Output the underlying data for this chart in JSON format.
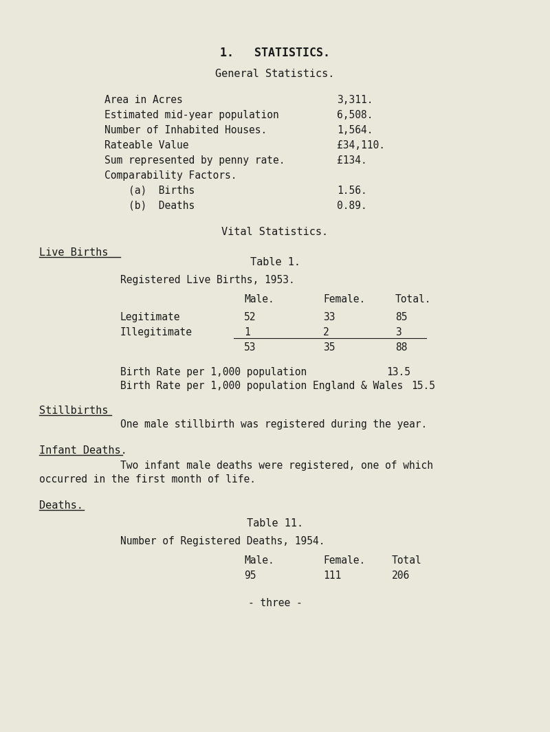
{
  "bg_color": "#eae8da",
  "text_color": "#1a1a1a",
  "title_main": "1.   STATISTICS.",
  "title_sub": "General Statistics.",
  "general_stats_labels": [
    "Area in Acres",
    "Estimated mid-year population",
    "Number of Inhabited Houses.",
    "Rateable Value",
    "Sum represented by penny rate.",
    "Comparability Factors.",
    "    (a)  Births",
    "    (b)  Deaths"
  ],
  "general_stats_values": [
    "3,311.",
    "6,508.",
    "1,564.",
    "£34,110.",
    "£134.",
    "",
    "1.56.",
    "0.89."
  ],
  "vital_stats_title": "Vital Statistics.",
  "live_births_heading": "Live Births",
  "table1_title": "Table 1.",
  "table1_subtitle": "Registered Live Births, 1953.",
  "table1_col_headers": [
    "Male.",
    "Female.",
    "Total."
  ],
  "table1_rows": [
    [
      "Legitimate",
      "52",
      "33",
      "85"
    ],
    [
      "Illegitimate",
      "1",
      "2",
      "3"
    ],
    [
      "",
      "53",
      "35",
      "88"
    ]
  ],
  "birth_rate_1": "Birth Rate per 1,000 population",
  "birth_rate_1_val": "13.5",
  "birth_rate_2": "Birth Rate per 1,000 population England & Wales",
  "birth_rate_2_val": "15.5",
  "stillbirths_heading": "Stillbirths",
  "stillbirths_text": "One male stillbirth was registered during the year.",
  "infant_deaths_heading": "Infant Deaths.",
  "infant_deaths_text1": "Two infant male deaths were registered, one of which",
  "infant_deaths_text2": "occurred in the first month of life.",
  "deaths_heading": "Deaths.",
  "table2_title": "Table 11.",
  "table2_subtitle": "Number of Registered Deaths, 1954.",
  "table2_col_headers": [
    "Male.",
    "Female.",
    "Total"
  ],
  "table2_values": [
    "95",
    "111",
    "206"
  ],
  "footer": "- three -"
}
